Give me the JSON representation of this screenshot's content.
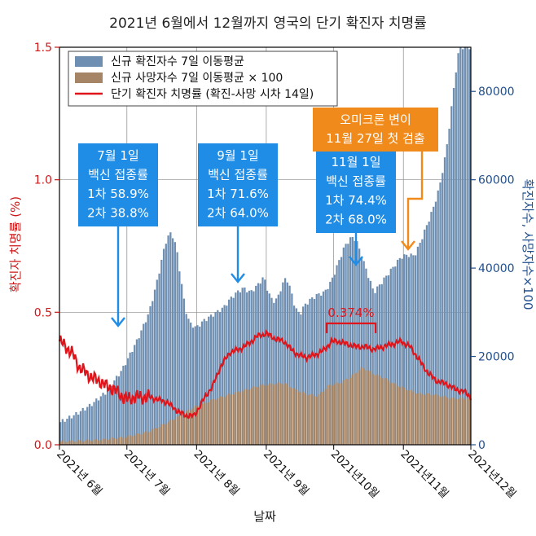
{
  "chart_data": {
    "type": "bar",
    "title": "2021년 6월에서 12월까지 영국의 단기 확진자 치명률",
    "xlabel": "날짜",
    "ylabel_left": "확진자 치명률 (%)",
    "ylabel_right": "확진자수, 사망자수×100",
    "ylim_left": [
      0,
      1.5
    ],
    "ylim_right": [
      0,
      90000
    ],
    "yticks_left": [
      "0.0",
      "0.5",
      "1.0",
      "1.5"
    ],
    "yticks_right": [
      "0",
      "20000",
      "40000",
      "60000",
      "80000"
    ],
    "xticks": [
      "2021년 6월",
      "2021년 7월",
      "2021년 8월",
      "2021년 9월",
      "2021년10월",
      "2021년11월",
      "2021년12월"
    ],
    "grid": true,
    "legend_position": "top-left",
    "colors": {
      "cases": "#6e8fb1",
      "deaths": "#a58566",
      "cfr": "#e0151b",
      "left_axis": "#cc1818",
      "right_axis": "#1f4e8c",
      "blue_box": "#1f8ce6",
      "orange_box": "#f08a1a"
    },
    "series": [
      {
        "name": "신규 확진자수 7일 이동평균",
        "axis": "right",
        "kind": "bar",
        "knots": [
          [
            0,
            5000
          ],
          [
            7,
            6800
          ],
          [
            14,
            9000
          ],
          [
            21,
            12000
          ],
          [
            28,
            17000
          ],
          [
            35,
            24000
          ],
          [
            40,
            30000
          ],
          [
            44,
            38000
          ],
          [
            46,
            43000
          ],
          [
            48,
            47000
          ],
          [
            50,
            48000
          ],
          [
            52,
            45000
          ],
          [
            54,
            38000
          ],
          [
            56,
            31000
          ],
          [
            58,
            27500
          ],
          [
            61,
            26500
          ],
          [
            64,
            28000
          ],
          [
            67,
            29000
          ],
          [
            70,
            30000
          ],
          [
            73,
            31000
          ],
          [
            76,
            33000
          ],
          [
            79,
            34500
          ],
          [
            82,
            35500
          ],
          [
            85,
            34500
          ],
          [
            88,
            36000
          ],
          [
            91,
            38000
          ],
          [
            93,
            34500
          ],
          [
            95,
            32500
          ],
          [
            97,
            33000
          ],
          [
            99,
            36000
          ],
          [
            101,
            38000
          ],
          [
            103,
            35000
          ],
          [
            105,
            31000
          ],
          [
            107,
            29500
          ],
          [
            109,
            31500
          ],
          [
            112,
            33000
          ],
          [
            115,
            34000
          ],
          [
            118,
            34500
          ],
          [
            121,
            37000
          ],
          [
            124,
            41000
          ],
          [
            127,
            45000
          ],
          [
            130,
            47000
          ],
          [
            132,
            46500
          ],
          [
            135,
            42000
          ],
          [
            138,
            37500
          ],
          [
            140,
            34500
          ],
          [
            143,
            36500
          ],
          [
            146,
            38500
          ],
          [
            149,
            40500
          ],
          [
            152,
            42500
          ],
          [
            155,
            43000
          ],
          [
            158,
            42800
          ],
          [
            160,
            45000
          ],
          [
            163,
            49000
          ],
          [
            166,
            53000
          ],
          [
            169,
            58000
          ],
          [
            172,
            66000
          ],
          [
            174,
            74000
          ],
          [
            176,
            83000
          ],
          [
            178,
            90000
          ],
          [
            183,
            90000
          ]
        ]
      },
      {
        "name": "신규 사망자수 7일 이동평균 × 100",
        "axis": "right",
        "kind": "bar",
        "knots": [
          [
            0,
            700
          ],
          [
            10,
            900
          ],
          [
            20,
            1200
          ],
          [
            30,
            1800
          ],
          [
            40,
            3000
          ],
          [
            50,
            5500
          ],
          [
            60,
            8500
          ],
          [
            70,
            10500
          ],
          [
            80,
            12000
          ],
          [
            90,
            13500
          ],
          [
            100,
            14000
          ],
          [
            105,
            12500
          ],
          [
            110,
            11500
          ],
          [
            115,
            11000
          ],
          [
            120,
            13500
          ],
          [
            125,
            14000
          ],
          [
            130,
            15500
          ],
          [
            135,
            17500
          ],
          [
            140,
            16000
          ],
          [
            145,
            15000
          ],
          [
            150,
            13500
          ],
          [
            155,
            12500
          ],
          [
            160,
            11500
          ],
          [
            165,
            11500
          ],
          [
            170,
            11000
          ],
          [
            175,
            10500
          ],
          [
            180,
            10500
          ],
          [
            183,
            10500
          ]
        ]
      },
      {
        "name": "단기 확진자 치명률 (확진-사망 시차 14일)",
        "axis": "left",
        "kind": "line",
        "knots": [
          [
            0,
            0.39
          ],
          [
            3,
            0.37
          ],
          [
            6,
            0.34
          ],
          [
            9,
            0.29
          ],
          [
            12,
            0.27
          ],
          [
            15,
            0.25
          ],
          [
            18,
            0.24
          ],
          [
            21,
            0.22
          ],
          [
            24,
            0.21
          ],
          [
            27,
            0.19
          ],
          [
            30,
            0.17
          ],
          [
            33,
            0.18
          ],
          [
            36,
            0.18
          ],
          [
            40,
            0.18
          ],
          [
            44,
            0.17
          ],
          [
            48,
            0.16
          ],
          [
            52,
            0.13
          ],
          [
            56,
            0.11
          ],
          [
            60,
            0.11
          ],
          [
            64,
            0.17
          ],
          [
            68,
            0.22
          ],
          [
            72,
            0.3
          ],
          [
            76,
            0.35
          ],
          [
            80,
            0.36
          ],
          [
            84,
            0.38
          ],
          [
            88,
            0.41
          ],
          [
            92,
            0.42
          ],
          [
            96,
            0.4
          ],
          [
            100,
            0.39
          ],
          [
            103,
            0.36
          ],
          [
            106,
            0.34
          ],
          [
            110,
            0.33
          ],
          [
            114,
            0.34
          ],
          [
            118,
            0.36
          ],
          [
            121,
            0.39
          ],
          [
            124,
            0.39
          ],
          [
            128,
            0.38
          ],
          [
            132,
            0.37
          ],
          [
            136,
            0.37
          ],
          [
            140,
            0.36
          ],
          [
            144,
            0.37
          ],
          [
            148,
            0.38
          ],
          [
            152,
            0.39
          ],
          [
            156,
            0.37
          ],
          [
            160,
            0.32
          ],
          [
            164,
            0.27
          ],
          [
            168,
            0.24
          ],
          [
            172,
            0.23
          ],
          [
            176,
            0.21
          ],
          [
            180,
            0.2
          ],
          [
            183,
            0.18
          ]
        ]
      }
    ],
    "annotations": [
      {
        "label": "7월 1일\n백신 접종률\n1차 58.9%\n2차 38.8%",
        "style": "blue"
      },
      {
        "label": "9월 1일\n백신 접종률\n1차 71.6%\n2차 64.0%",
        "style": "blue"
      },
      {
        "label": "11월 1일\n백신 접종률\n1차 74.4%\n2차 68.0%",
        "style": "blue"
      },
      {
        "label": "오미크론 변이\n11월 27일 첫 검출",
        "style": "orange"
      },
      {
        "label": "0.374%",
        "style": "red"
      }
    ]
  }
}
